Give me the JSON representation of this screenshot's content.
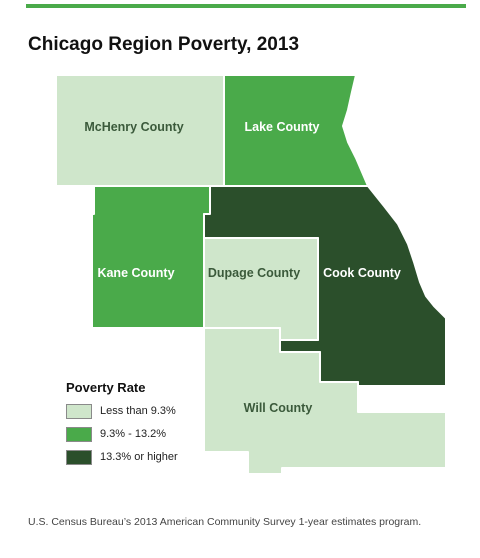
{
  "title": "Chicago Region Poverty, 2013",
  "colors": {
    "accent_rule": "#4aaa4a",
    "low": "#cfe6cb",
    "mid": "#4aaa4a",
    "high": "#2b4f2b",
    "label_dark": "#3b5a3b",
    "label_light": "#ffffff"
  },
  "counties": [
    {
      "id": "mchenry",
      "name": "McHenry County",
      "category": "Less than 9.3%"
    },
    {
      "id": "lake",
      "name": "Lake County",
      "category": "9.3% - 13.2%"
    },
    {
      "id": "kane",
      "name": "Kane County",
      "category": "9.3% - 13.2%"
    },
    {
      "id": "dupage",
      "name": "Dupage County",
      "category": "Less than 9.3%"
    },
    {
      "id": "cook",
      "name": "Cook County",
      "category": "13.3% or higher"
    },
    {
      "id": "will",
      "name": "Will County",
      "category": "Less than 9.3%"
    }
  ],
  "legend": {
    "title": "Poverty Rate",
    "items": [
      {
        "label": "Less than 9.3%",
        "color": "#cfe6cb"
      },
      {
        "label": "9.3% - 13.2%",
        "color": "#4aaa4a"
      },
      {
        "label": "13.3% or higher",
        "color": "#2b4f2b"
      }
    ]
  },
  "source": "U.S. Census Bureau’s 2013 American Community Survey 1-year estimates program."
}
